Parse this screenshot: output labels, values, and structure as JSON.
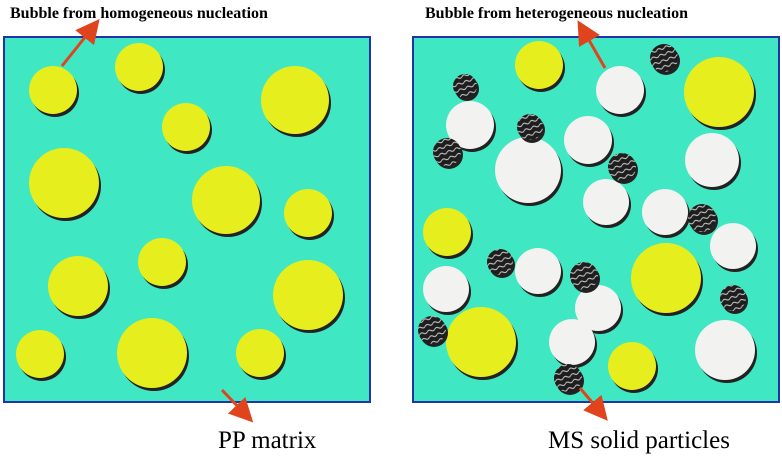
{
  "annotations": {
    "homogeneous": "Bubble from homogeneous nucleation",
    "heterogeneous": "Bubble from heterogeneous nucleation",
    "matrix": "PP matrix",
    "particles": "MS solid particles"
  }
}
